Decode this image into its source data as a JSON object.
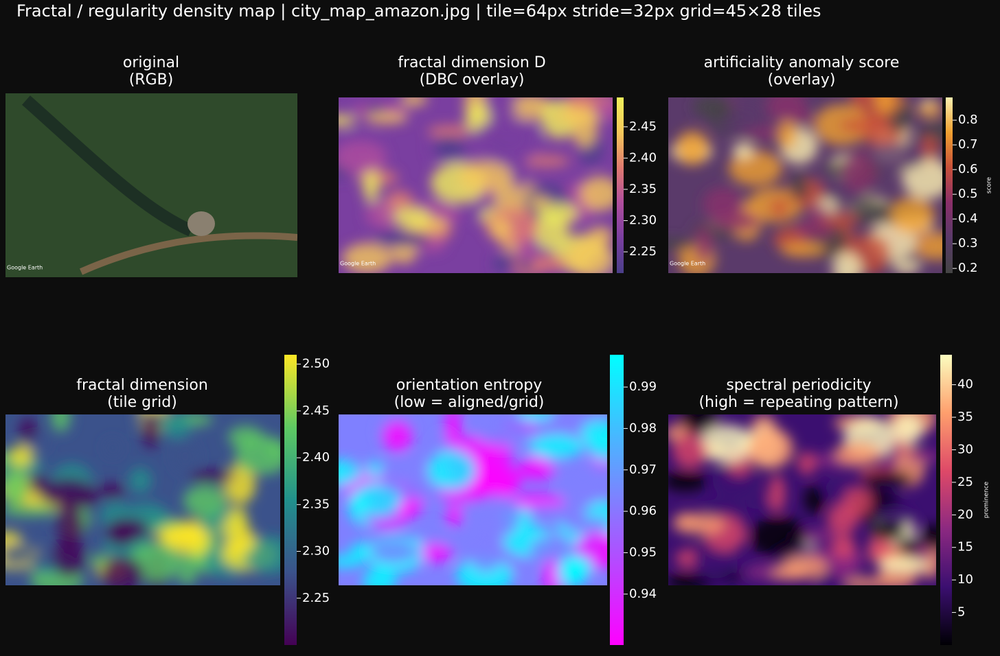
{
  "title": "Fractal / regularity density map   |   city_map_amazon.jpg   |   tile=64px   stride=32px   grid=45×28 tiles",
  "chart_data": [
    {
      "type": "image",
      "title": [
        "original",
        "(RGB)"
      ],
      "watermark": "Google Earth"
    },
    {
      "type": "heatmap",
      "title": [
        "fractal dimension D",
        "(DBC overlay)"
      ],
      "watermark": "Google Earth",
      "colormap": [
        "#4b3f8a",
        "#7a3fa0",
        "#b04e9e",
        "#e07a70",
        "#f5c85a",
        "#f0f05a"
      ],
      "clim": [
        2.216,
        2.497
      ],
      "cticks": [
        2.25,
        {
          "value": 2.3,
          "label": "2.30"
        },
        2.35,
        {
          "value": 2.4,
          "label": "2.40"
        },
        2.45
      ]
    },
    {
      "type": "heatmap",
      "title": [
        "artificiality anomaly score",
        "(overlay)"
      ],
      "watermark": "Google Earth",
      "colormap": [
        "#444444",
        "#5a3a6a",
        "#8a2f6a",
        "#c8503a",
        "#f0a030",
        "#fcf0b0"
      ],
      "clim": [
        0.181,
        0.892
      ],
      "cticks": [
        0.2,
        0.3,
        0.4,
        0.5,
        0.6,
        0.7,
        0.8
      ],
      "colorbar_label": "score"
    },
    {
      "type": "heatmap",
      "title": [
        "fractal dimension",
        "(tile grid)"
      ],
      "colormap": [
        "#440154",
        "#3b528b",
        "#21918c",
        "#5ec962",
        "#fde725"
      ],
      "clim": [
        2.2,
        2.51
      ],
      "cticks": [
        2.25,
        {
          "value": 2.3,
          "label": "2.30"
        },
        2.35,
        {
          "value": 2.4,
          "label": "2.40"
        },
        2.45,
        {
          "value": 2.5,
          "label": "2.50"
        }
      ]
    },
    {
      "type": "heatmap",
      "title": [
        "orientation entropy",
        "(low = aligned/grid)"
      ],
      "colormap": [
        "#ff00ff",
        "#7f80ff",
        "#00ffff"
      ],
      "clim": [
        0.9277,
        0.9978
      ],
      "cticks": [
        0.94,
        0.95,
        0.96,
        0.97,
        0.98,
        0.99
      ]
    },
    {
      "type": "heatmap",
      "title": [
        "spectral periodicity",
        "(high = repeating pattern)"
      ],
      "colormap": [
        "#000004",
        "#3b0f70",
        "#8c2981",
        "#de4968",
        "#fe9f6d",
        "#fcfdbf"
      ],
      "clim": [
        0,
        44.6
      ],
      "cticks": [
        5,
        10,
        15,
        20,
        25,
        30,
        35,
        40
      ],
      "colorbar_label": "prominence"
    }
  ]
}
